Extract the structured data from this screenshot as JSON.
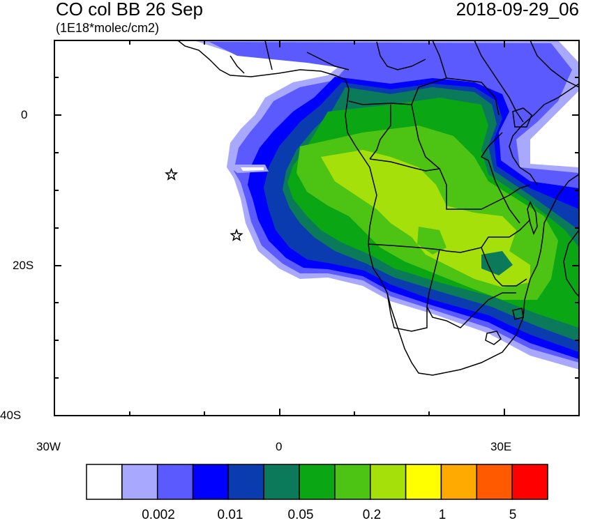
{
  "header": {
    "title": "CO col BB 26 Sep",
    "units": "(1E18*molec/cm2)",
    "datetime": "2018-09-29_06"
  },
  "axes": {
    "lat_labels": [
      "0",
      "20S",
      "40S"
    ],
    "lon_labels": [
      "30W",
      "0",
      "30E"
    ]
  },
  "map": {
    "lon_range": [
      -30,
      40
    ],
    "lat_range": [
      -40,
      10
    ],
    "markers": [
      {
        "name": "star",
        "lon": -14.4,
        "lat": -7.9
      },
      {
        "name": "star",
        "lon": -5.7,
        "lat": -16.0
      }
    ]
  },
  "colorbar": {
    "colors": [
      "#ffffff",
      "#a8a8ff",
      "#5a5aff",
      "#0000ff",
      "#0a3cb0",
      "#0a7a5a",
      "#0aa614",
      "#4dc414",
      "#a6e00a",
      "#ffff00",
      "#ffaa00",
      "#ff5a00",
      "#ff0000"
    ],
    "labels": [
      "0.002",
      "0.01",
      "0.05",
      "0.2",
      "1",
      "5"
    ]
  }
}
